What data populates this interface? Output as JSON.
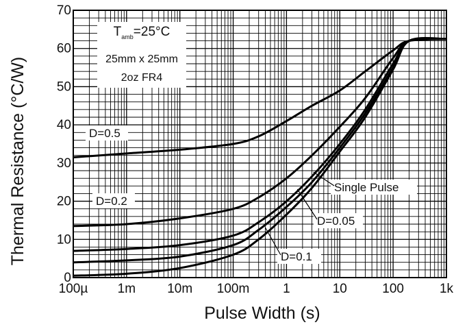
{
  "chart_data": {
    "type": "line",
    "xlabel": "Pulse Width (s)",
    "ylabel": "Thermal Resistance (°C/W)",
    "x_scale": "log",
    "xlim": [
      0.0001,
      1000
    ],
    "ylim": [
      0,
      70
    ],
    "grid": true,
    "x_ticks": [
      0.0001,
      0.001,
      0.01,
      0.1,
      1,
      10,
      100,
      1000
    ],
    "x_tick_labels": [
      "100µ",
      "1m",
      "10m",
      "100m",
      "1",
      "10",
      "100",
      "1k"
    ],
    "y_ticks": [
      0,
      10,
      20,
      30,
      40,
      50,
      60,
      70
    ],
    "y_tick_labels": [
      "0",
      "10",
      "20",
      "30",
      "40",
      "50",
      "60",
      "70"
    ],
    "conditions": {
      "line1_prefix": "T",
      "line1_sub": "amb",
      "line1_suffix": "=25°C",
      "line2": "25mm x 25mm",
      "line3": "2oz FR4"
    },
    "series": [
      {
        "name": "D=0.5",
        "x": [
          0.0001,
          0.001,
          0.01,
          0.1,
          0.3,
          1,
          3,
          10,
          30,
          100,
          200,
          1000
        ],
        "y": [
          31.5,
          32.5,
          33.5,
          35,
          37,
          41,
          45,
          49,
          54,
          59.5,
          62,
          62.5
        ]
      },
      {
        "name": "D=0.2",
        "x": [
          0.0001,
          0.001,
          0.01,
          0.1,
          0.3,
          1,
          3,
          10,
          30,
          100,
          200,
          1000
        ],
        "y": [
          13.5,
          14,
          15.5,
          18,
          21,
          26,
          32,
          39.5,
          47,
          57.5,
          62,
          62.5
        ]
      },
      {
        "name": "D=0.1",
        "x": [
          0.0001,
          0.001,
          0.01,
          0.1,
          0.3,
          1,
          3,
          10,
          30,
          100,
          200,
          1000
        ],
        "y": [
          7,
          7.5,
          8.5,
          11,
          14.5,
          20,
          26.5,
          35,
          44,
          56,
          62,
          62.5
        ]
      },
      {
        "name": "D=0.05",
        "x": [
          0.0001,
          0.001,
          0.01,
          0.1,
          0.3,
          1,
          3,
          10,
          30,
          100,
          200,
          1000
        ],
        "y": [
          4,
          4.5,
          5.5,
          8.5,
          12.5,
          18.5,
          25,
          34,
          43,
          55,
          62,
          62.5
        ]
      },
      {
        "name": "Single Pulse",
        "x": [
          0.0001,
          0.001,
          0.01,
          0.1,
          0.3,
          1,
          3,
          10,
          30,
          100,
          200,
          1000
        ],
        "y": [
          0.5,
          1,
          2.5,
          6,
          10,
          16.5,
          23.5,
          33,
          42,
          54.5,
          62,
          62.5
        ]
      }
    ],
    "annotations": [
      {
        "text": "D=0.5",
        "series": "D=0.5"
      },
      {
        "text": "D=0.2",
        "series": "D=0.2"
      },
      {
        "text": "D=0.1",
        "series": "D=0.1"
      },
      {
        "text": "D=0.05",
        "series": "D=0.05"
      },
      {
        "text": "Single Pulse",
        "series": "Single Pulse"
      }
    ]
  }
}
